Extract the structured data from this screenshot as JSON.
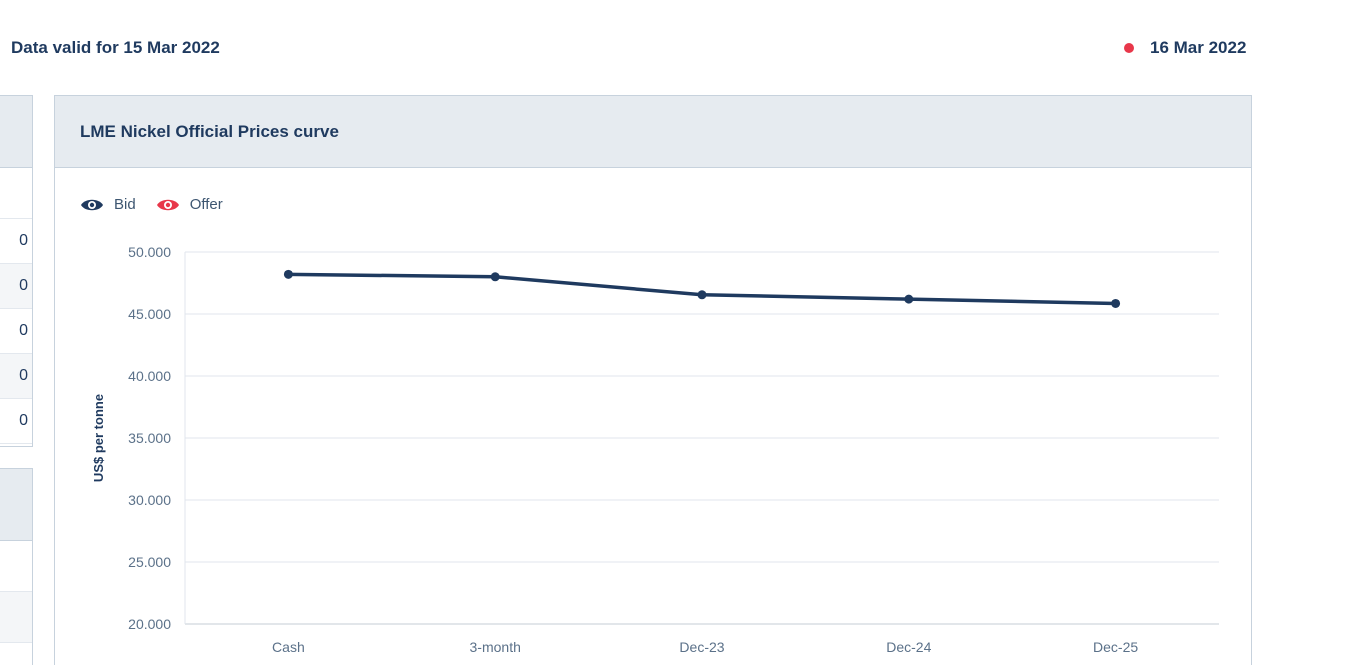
{
  "header": {
    "valid_label": "Data valid for 15 Mar 2022",
    "live_date": "16 Mar 2022",
    "live_dot_color": "#e8374a"
  },
  "left_panel": {
    "row_values": [
      "0",
      "0",
      "0",
      "0",
      "0"
    ]
  },
  "card": {
    "title": "LME Nickel Official Prices curve"
  },
  "legend": {
    "items": [
      {
        "label": "Bid",
        "icon": "eye-icon",
        "color": "#1f3a5f"
      },
      {
        "label": "Offer",
        "icon": "eye-icon",
        "color": "#e8374a"
      }
    ]
  },
  "chart_data": {
    "type": "line",
    "title": "LME Nickel Official Prices curve",
    "categories": [
      "Cash",
      "3-month",
      "Dec-23",
      "Dec-24",
      "Dec-25"
    ],
    "series": [
      {
        "name": "Bid",
        "values": [
          48200,
          48000,
          46550,
          46200,
          45850
        ],
        "color": "#1f3a5f"
      }
    ],
    "ylabel": "US$ per tonne",
    "ylim": [
      20000,
      50000
    ],
    "yticks": [
      20000,
      25000,
      30000,
      35000,
      40000,
      45000,
      50000
    ],
    "ytick_labels": [
      "20.000",
      "25.000",
      "30.000",
      "35.000",
      "40.000",
      "45.000",
      "50.000"
    ],
    "grid": true,
    "legend_position": "top-left"
  }
}
